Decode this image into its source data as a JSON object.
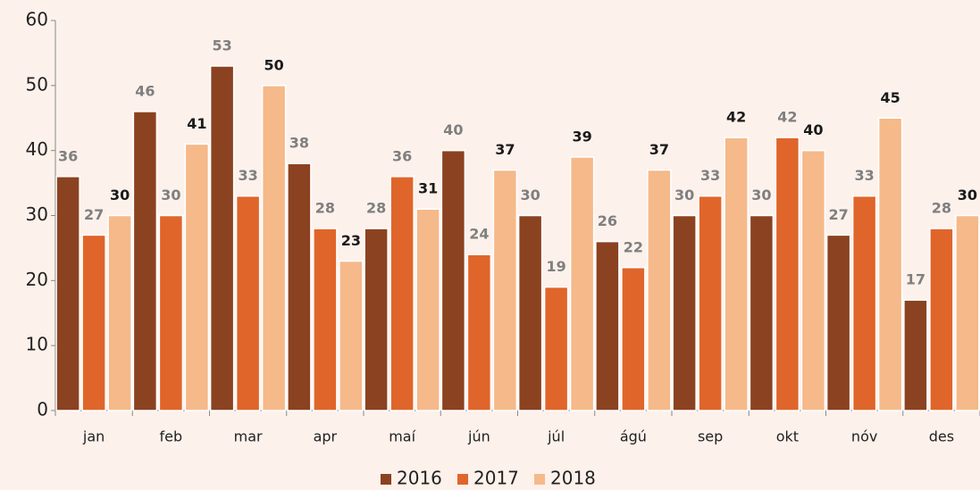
{
  "chart_data": {
    "type": "bar",
    "categories": [
      "jan",
      "feb",
      "mar",
      "apr",
      "maí",
      "jún",
      "júl",
      "ágú",
      "sep",
      "okt",
      "nóv",
      "des"
    ],
    "series": [
      {
        "name": "2016",
        "color": "#8b4220",
        "label_color": "#7f7f7f",
        "values": [
          36,
          46,
          53,
          38,
          28,
          40,
          30,
          26,
          30,
          30,
          27,
          17
        ]
      },
      {
        "name": "2017",
        "color": "#e0652a",
        "label_color": "#7f7f7f",
        "values": [
          27,
          30,
          33,
          28,
          36,
          24,
          19,
          22,
          33,
          42,
          33,
          28
        ]
      },
      {
        "name": "2018",
        "color": "#f5b98a",
        "label_color": "#1a1a1a",
        "values": [
          30,
          41,
          50,
          23,
          31,
          37,
          39,
          37,
          42,
          40,
          45,
          30
        ]
      }
    ],
    "ylim": [
      0,
      60
    ],
    "yticks": [
      0,
      10,
      20,
      30,
      40,
      50,
      60
    ],
    "grid": false,
    "legend": "bottom"
  }
}
